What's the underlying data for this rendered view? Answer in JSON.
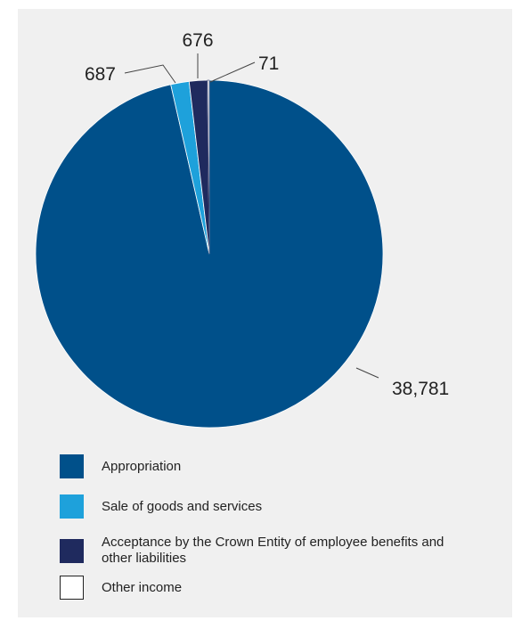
{
  "colors": {
    "background": "#f0f0f0",
    "appropriation": "#00508a",
    "sale": "#1ea1db",
    "acceptance": "#1f2a5e",
    "other": "#ffffff",
    "leader_line": "#444444"
  },
  "chart_data": {
    "type": "pie",
    "start_angle_deg": 0,
    "direction": "clockwise",
    "slices": [
      {
        "label": "Appropriation",
        "value": 38781,
        "value_label": "38,781",
        "color": "#00508a"
      },
      {
        "label": "Sale of goods and services",
        "value": 687,
        "value_label": "687",
        "color": "#1ea1db"
      },
      {
        "label": "Acceptance by the Crown Entity of employee benefits and other liabilities",
        "value": 676,
        "value_label": "676",
        "color": "#1f2a5e"
      },
      {
        "label": "Other income",
        "value": 71,
        "value_label": "71",
        "color": "#ffffff"
      }
    ]
  },
  "legend": {
    "items": [
      {
        "label": "Appropriation",
        "color": "#00508a"
      },
      {
        "label": "Sale of goods and services",
        "color": "#1ea1db"
      },
      {
        "label": "Acceptance by the Crown Entity of employee benefits and other liabilities",
        "color": "#1f2a5e"
      },
      {
        "label": "Other income",
        "color": "#ffffff"
      }
    ]
  }
}
